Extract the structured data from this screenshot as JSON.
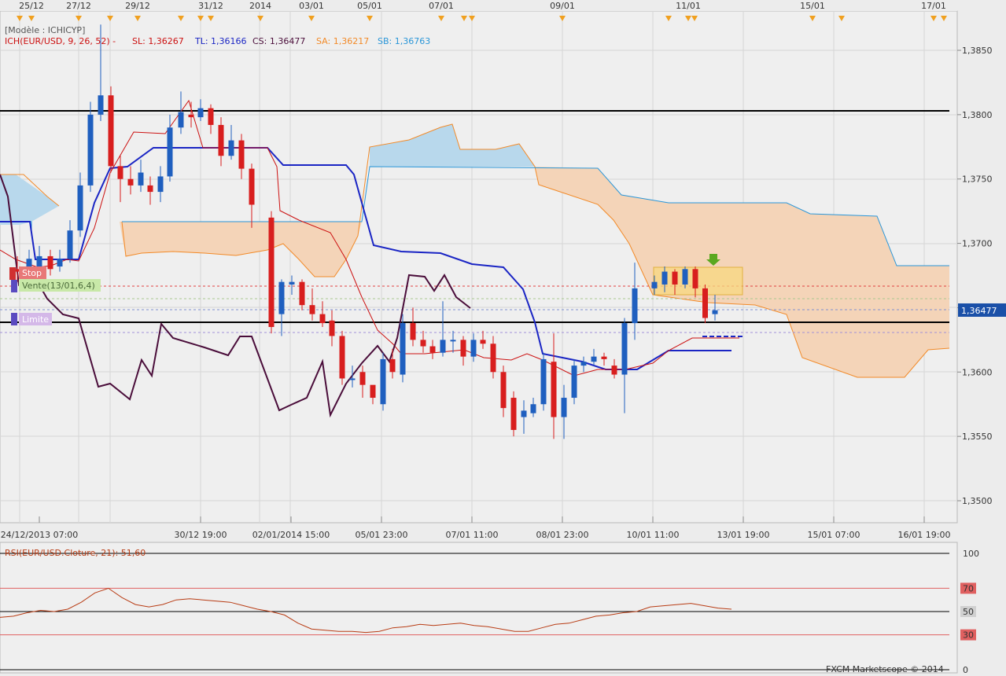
{
  "colors": {
    "background": "#ececec",
    "grid": "#d6d6d6",
    "bull": "#1f5fbf",
    "bear": "#d81e1e",
    "tenkan": "#cc1010",
    "kijun": "#1a25c4",
    "chikou": "#4a0d3a",
    "senkou_a": "#f28a28",
    "senkou_b": "#2a96d8",
    "kumo_bull": "#b8d8ec",
    "kumo_bear": "#f4d4b8",
    "rsi_line": "#b83c14",
    "rsi_band": "#e06060",
    "current_price_bg": "#1a50a8",
    "signal_box": "#f8d880",
    "signal_arrow": "#5aa820",
    "stop_label_bg": "#e87878",
    "vente_label_bg": "#c8e8a8",
    "limite_label_bg": "#d4b8e8"
  },
  "header": {
    "model": "[Modèle : ICHICYP]",
    "ich_label": "ICH(EUR/USD, 9, 26, 52) -",
    "sl": "SL: 1,36267",
    "tl": "TL: 1,36166",
    "cs": "CS: 1,36477",
    "sa": "SA: 1,36217",
    "sb": "SB: 1,36763"
  },
  "top_axis": {
    "labels": [
      "25/12",
      "27/12",
      "29/12",
      "31/12",
      "2014",
      "03/01",
      "05/01",
      "07/01",
      "09/01",
      "11/01",
      "15/01",
      "17/01"
    ]
  },
  "bottom_axis": {
    "labels": [
      "24/12/2013 07:00",
      "30/12 19:00",
      "02/01/2014 15:00",
      "05/01 23:00",
      "07/01 11:00",
      "08/01 23:00",
      "10/01 11:00",
      "13/01 19:00",
      "15/01 07:00",
      "16/01 19:00"
    ]
  },
  "order_labels": {
    "stop": "Stop",
    "vente": "Vente(13/01,6,4)",
    "limite": "Limite"
  },
  "current_price": "1,36477",
  "rsi": {
    "label": "RSI(EUR/USD.Cloture, 21): 51,60",
    "levels": [
      "100",
      "70",
      "50",
      "30",
      "0"
    ],
    "ylim": [
      0,
      100
    ],
    "values": [
      45,
      46,
      49,
      51,
      50,
      52,
      58,
      66,
      70,
      62,
      56,
      54,
      56,
      60,
      61,
      60,
      59,
      58,
      55,
      52,
      50,
      47,
      40,
      35,
      34,
      33,
      33,
      32,
      33,
      36,
      37,
      39,
      38,
      39,
      40,
      38,
      37,
      35,
      33,
      33,
      36,
      39,
      40,
      43,
      46,
      47,
      49,
      50,
      54,
      55,
      56,
      57,
      55,
      53,
      52
    ]
  },
  "footer": {
    "copyright": "FXCM Marketscope © 2014"
  },
  "chart_data": {
    "type": "candlestick",
    "symbol": "EUR/USD",
    "indicator": "ICH(EUR/USD, 9, 26, 52)",
    "ylim": [
      1.3475,
      1.388
    ],
    "y_ticks": [
      "1,3850",
      "1,3800",
      "1,3750",
      "1,3700",
      "1,3650",
      "1,3600",
      "1,3550",
      "1,3500"
    ],
    "candles": [
      [
        1.368,
        1.3678,
        1.369,
        1.367
      ],
      [
        1.3682,
        1.3688,
        1.3695,
        1.3675
      ],
      [
        1.368,
        1.369,
        1.3698,
        1.3675
      ],
      [
        1.369,
        1.368,
        1.3695,
        1.3675
      ],
      [
        1.3682,
        1.3688,
        1.3695,
        1.3678
      ],
      [
        1.3688,
        1.371,
        1.3718,
        1.3685
      ],
      [
        1.371,
        1.3745,
        1.3755,
        1.3705
      ],
      [
        1.3745,
        1.38,
        1.381,
        1.374
      ],
      [
        1.38,
        1.3815,
        1.387,
        1.3795
      ],
      [
        1.3815,
        1.376,
        1.3822,
        1.3755
      ],
      [
        1.376,
        1.375,
        1.3768,
        1.3732
      ],
      [
        1.375,
        1.3745,
        1.376,
        1.3738
      ],
      [
        1.3745,
        1.3755,
        1.3765,
        1.374
      ],
      [
        1.3745,
        1.374,
        1.3752,
        1.373
      ],
      [
        1.374,
        1.3752,
        1.376,
        1.3732
      ],
      [
        1.3752,
        1.379,
        1.38,
        1.3748
      ],
      [
        1.379,
        1.3802,
        1.3818,
        1.3785
      ],
      [
        1.38,
        1.3798,
        1.381,
        1.379
      ],
      [
        1.3798,
        1.3805,
        1.3812,
        1.3795
      ],
      [
        1.3805,
        1.3792,
        1.3808,
        1.3785
      ],
      [
        1.3792,
        1.3768,
        1.3798,
        1.376
      ],
      [
        1.3768,
        1.378,
        1.3792,
        1.3765
      ],
      [
        1.378,
        1.3758,
        1.3785,
        1.375
      ],
      [
        1.3758,
        1.373,
        1.3762,
        1.3712
      ],
      [
        1.372,
        1.3635,
        1.3725,
        1.363
      ],
      [
        1.3645,
        1.367,
        1.3672,
        1.3628
      ],
      [
        1.3668,
        1.367,
        1.3675,
        1.366
      ],
      [
        1.367,
        1.3652,
        1.3672,
        1.3648
      ],
      [
        1.3652,
        1.3645,
        1.3665,
        1.364
      ],
      [
        1.3645,
        1.3638,
        1.3655,
        1.3635
      ],
      [
        1.364,
        1.3628,
        1.3648,
        1.362
      ],
      [
        1.3628,
        1.3595,
        1.3632,
        1.359
      ],
      [
        1.3595,
        1.3595,
        1.3605,
        1.3588
      ],
      [
        1.36,
        1.359,
        1.3605,
        1.358
      ],
      [
        1.359,
        1.358,
        1.3585,
        1.3575
      ],
      [
        1.3575,
        1.361,
        1.3615,
        1.357
      ],
      [
        1.361,
        1.36,
        1.3618,
        1.3595
      ],
      [
        1.3598,
        1.3638,
        1.3645,
        1.3592
      ],
      [
        1.3638,
        1.3625,
        1.365,
        1.362
      ],
      [
        1.3625,
        1.362,
        1.3632,
        1.3615
      ],
      [
        1.362,
        1.3615,
        1.3625,
        1.361
      ],
      [
        1.3615,
        1.3625,
        1.3655,
        1.3612
      ],
      [
        1.3625,
        1.3625,
        1.3632,
        1.3615
      ],
      [
        1.3625,
        1.3612,
        1.3628,
        1.3605
      ],
      [
        1.3612,
        1.3625,
        1.363,
        1.3608
      ],
      [
        1.3625,
        1.3622,
        1.3632,
        1.3618
      ],
      [
        1.3622,
        1.36,
        1.3628,
        1.3595
      ],
      [
        1.36,
        1.3572,
        1.3605,
        1.3565
      ],
      [
        1.358,
        1.3555,
        1.3585,
        1.355
      ],
      [
        1.3565,
        1.357,
        1.3578,
        1.3552
      ],
      [
        1.3568,
        1.3575,
        1.358,
        1.3565
      ],
      [
        1.3575,
        1.361,
        1.3615,
        1.357
      ],
      [
        1.3608,
        1.3565,
        1.363,
        1.3548
      ],
      [
        1.3565,
        1.358,
        1.359,
        1.3548
      ],
      [
        1.358,
        1.3605,
        1.361,
        1.3575
      ],
      [
        1.3605,
        1.3608,
        1.3612,
        1.36
      ],
      [
        1.3608,
        1.3612,
        1.3618,
        1.3605
      ],
      [
        1.3612,
        1.361,
        1.3615,
        1.3605
      ],
      [
        1.3605,
        1.3598,
        1.361,
        1.3595
      ],
      [
        1.3598,
        1.3638,
        1.3642,
        1.3568
      ],
      [
        1.3638,
        1.3665,
        1.3685,
        1.3625
      ],
      [
        1.3665,
        1.367,
        1.3675,
        1.366
      ],
      [
        1.3668,
        1.3678,
        1.3682,
        1.3662
      ],
      [
        1.3678,
        1.3668,
        1.368,
        1.366
      ],
      [
        1.3668,
        1.368,
        1.3682,
        1.3665
      ],
      [
        1.368,
        1.3665,
        1.3682,
        1.3658
      ],
      [
        1.3665,
        1.3642,
        1.3668,
        1.3638
      ],
      [
        1.3645,
        1.3648,
        1.366,
        1.364
      ]
    ],
    "tenkan": [
      1.3695,
      1.369,
      1.3685,
      1.3688,
      1.369,
      1.37,
      1.3725,
      1.3755,
      1.377,
      1.377,
      1.377,
      1.3778,
      1.3778,
      1.3778,
      1.379,
      1.38,
      1.3812,
      1.3812,
      1.3812,
      1.378,
      1.3775,
      1.3775,
      1.3772,
      1.376,
      1.3725,
      1.371,
      1.371,
      1.3705,
      1.37,
      1.369,
      1.3668,
      1.364,
      1.3632,
      1.363,
      1.3628,
      1.3625,
      1.3625,
      1.3612,
      1.3612,
      1.3612,
      1.3612,
      1.3612,
      1.3612,
      1.361,
      1.361,
      1.361,
      1.3605,
      1.3595,
      1.3592,
      1.359,
      1.359,
      1.359,
      1.359,
      1.3595,
      1.36,
      1.3605,
      1.3605,
      1.36,
      1.36,
      1.3605,
      1.363,
      1.363,
      1.363,
      1.363,
      1.363,
      1.363
    ],
    "kijun": [
      1.3715,
      1.3715,
      1.37,
      1.369,
      1.3688,
      1.369,
      1.37,
      1.3735,
      1.376,
      1.376,
      1.3762,
      1.377,
      1.3775,
      1.3775,
      1.3775,
      1.3775,
      1.3775,
      1.3775,
      1.3775,
      1.3775,
      1.3775,
      1.3775,
      1.3775,
      1.3775,
      1.3768,
      1.376,
      1.376,
      1.376,
      1.3758,
      1.3752,
      1.374,
      1.371,
      1.3695,
      1.3692,
      1.369,
      1.369,
      1.369,
      1.3688,
      1.3688,
      1.3684,
      1.368,
      1.3672,
      1.366,
      1.365,
      1.362,
      1.3615,
      1.3612,
      1.361,
      1.3605,
      1.3605,
      1.3605,
      1.3605,
      1.3605,
      1.3605,
      1.3605,
      1.3605,
      1.3605,
      1.361,
      1.362,
      1.362,
      1.362,
      1.362,
      1.362,
      1.362,
      1.362,
      1.362
    ],
    "chikou": [
      1.375,
      1.37,
      1.3685,
      1.366,
      1.3655,
      1.365,
      1.364,
      1.362,
      1.359,
      1.359,
      1.3585,
      1.361,
      1.3595,
      1.364,
      1.363,
      1.3625,
      1.362,
      1.3615,
      1.3625,
      1.3625,
      1.3615,
      1.358,
      1.3575,
      1.357,
      1.3575,
      1.3605,
      1.3565,
      1.3605,
      1.3608,
      1.365,
      1.367,
      1.368,
      1.367,
      1.368,
      1.3665,
      1.365,
      1.365
    ],
    "senkou_a": [
      1.3705,
      1.3708,
      1.3712,
      1.3718,
      1.372,
      1.3735,
      1.3745,
      1.375,
      1.3758,
      1.377,
      1.378,
      1.3785,
      1.3792,
      1.379,
      1.378,
      1.3775,
      1.3775,
      1.3775,
      1.3775,
      1.3778,
      1.3765,
      1.3745,
      1.3735,
      1.3725,
      1.371,
      1.369,
      1.3685,
      1.3678,
      1.367,
      1.366,
      1.3655,
      1.365,
      1.3645,
      1.363,
      1.3618,
      1.361,
      1.3605,
      1.36,
      1.3598,
      1.3598,
      1.3598,
      1.3608,
      1.3618,
      1.3618
    ],
    "senkou_b": [
      1.3758,
      1.3758,
      1.3758,
      1.3758,
      1.3758,
      1.3758,
      1.3758,
      1.3758,
      1.3758,
      1.375,
      1.3745,
      1.3735,
      1.3732,
      1.373,
      1.3728,
      1.3728,
      1.3728,
      1.3725,
      1.3722,
      1.3722,
      1.3722,
      1.3722,
      1.3722,
      1.3722,
      1.3722,
      1.3722,
      1.3682,
      1.3682,
      1.3682,
      1.3682
    ]
  }
}
